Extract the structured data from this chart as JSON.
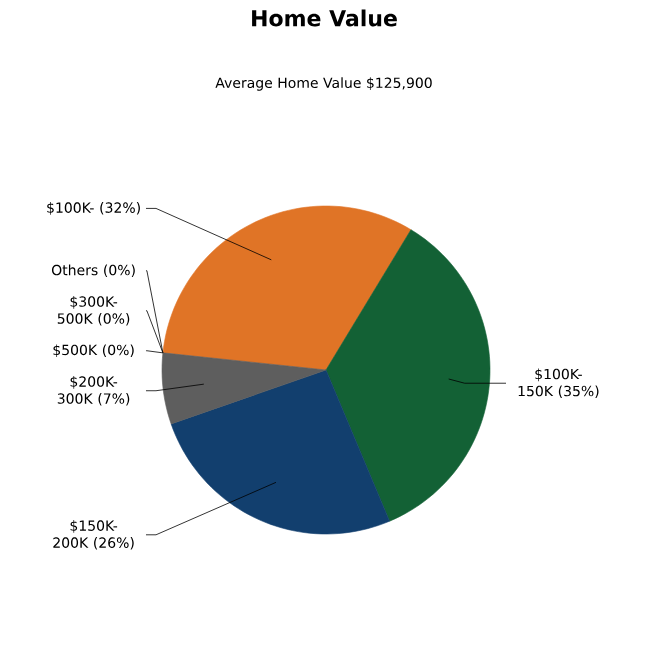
{
  "chart_data": {
    "type": "pie",
    "title": "Home Value",
    "subtitle": "Average Home Value  $125,900",
    "categories": [
      "$100K-",
      "$100K-150K",
      "$150K-200K",
      "$200K-300K",
      "$500K",
      "$300K-500K",
      "Others"
    ],
    "values": [
      32,
      35,
      26,
      7,
      0,
      0,
      0
    ],
    "colors": [
      "#e07426",
      "#136135",
      "#123f6e",
      "#5e5e5e",
      "#7f7f7f",
      "#9f9f9f",
      "#bfbfbf"
    ],
    "value_labels": [
      "(32%)",
      "(35%)",
      "(26%)",
      "(7%)",
      "(0%)",
      "(0%)",
      "(0%)"
    ]
  }
}
